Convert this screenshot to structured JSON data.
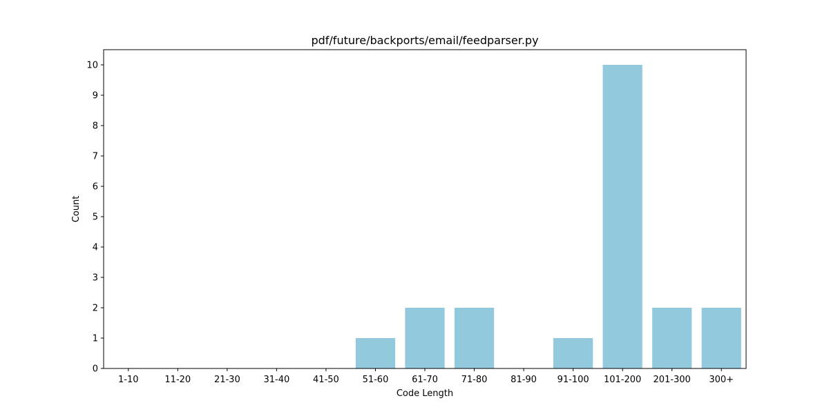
{
  "chart_data": {
    "type": "bar",
    "title": "pdf/future/backports/email/feedparser.py",
    "xlabel": "Code Length",
    "ylabel": "Count",
    "categories": [
      "1-10",
      "11-20",
      "21-30",
      "31-40",
      "41-50",
      "51-60",
      "61-70",
      "71-80",
      "81-90",
      "91-100",
      "101-200",
      "201-300",
      "300+"
    ],
    "values": [
      0,
      0,
      0,
      0,
      0,
      1,
      2,
      2,
      0,
      1,
      10,
      2,
      2
    ],
    "ylim": [
      0,
      10.5
    ],
    "yticks": [
      0,
      1,
      2,
      3,
      4,
      5,
      6,
      7,
      8,
      9,
      10
    ],
    "bar_color": "#92c9dd",
    "grid": false,
    "legend": "none"
  }
}
